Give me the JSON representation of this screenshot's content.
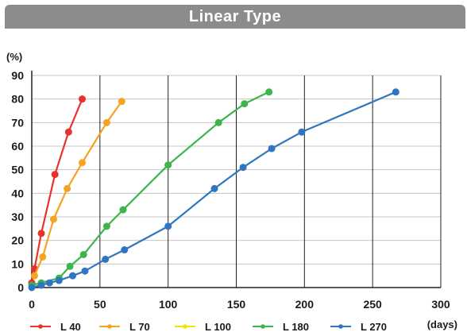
{
  "chart_data": {
    "type": "line",
    "title": "Linear Type",
    "ylabel": "(%)",
    "xlabel": "(days)",
    "xlim": [
      0,
      300
    ],
    "ylim": [
      0,
      90
    ],
    "x_ticks": [
      0,
      50,
      100,
      150,
      200,
      250,
      300
    ],
    "y_ticks": [
      0,
      10,
      20,
      30,
      40,
      50,
      60,
      70,
      80,
      90
    ],
    "grid": true,
    "legend_position": "bottom",
    "series": [
      {
        "name": "L 40",
        "color": "#e8322c",
        "points": [
          [
            0,
            2
          ],
          [
            2,
            8
          ],
          [
            7,
            23
          ],
          [
            17,
            48
          ],
          [
            27,
            66
          ],
          [
            37,
            80
          ]
        ]
      },
      {
        "name": "L 70",
        "color": "#f5a321",
        "points": [
          [
            2,
            5
          ],
          [
            8,
            13
          ],
          [
            16,
            29
          ],
          [
            26,
            42
          ],
          [
            37,
            53
          ],
          [
            55,
            70
          ],
          [
            66,
            79
          ]
        ]
      },
      {
        "name": "L 100",
        "color": "#f2e400",
        "points": []
      },
      {
        "name": "L 180",
        "color": "#3cb54a",
        "points": [
          [
            0,
            1
          ],
          [
            7,
            2
          ],
          [
            20,
            4
          ],
          [
            28,
            9
          ],
          [
            38,
            14
          ],
          [
            55,
            26
          ],
          [
            67,
            33
          ],
          [
            100,
            52
          ],
          [
            137,
            70
          ],
          [
            156,
            78
          ],
          [
            174,
            83
          ]
        ]
      },
      {
        "name": "L 270",
        "color": "#2f76c0",
        "points": [
          [
            0,
            0
          ],
          [
            7,
            1
          ],
          [
            13,
            2
          ],
          [
            20,
            3
          ],
          [
            30,
            5
          ],
          [
            39,
            7
          ],
          [
            54,
            12
          ],
          [
            68,
            16
          ],
          [
            100,
            26
          ],
          [
            134,
            42
          ],
          [
            155,
            51
          ],
          [
            176,
            59
          ],
          [
            198,
            66
          ],
          [
            267,
            83
          ]
        ]
      }
    ]
  }
}
